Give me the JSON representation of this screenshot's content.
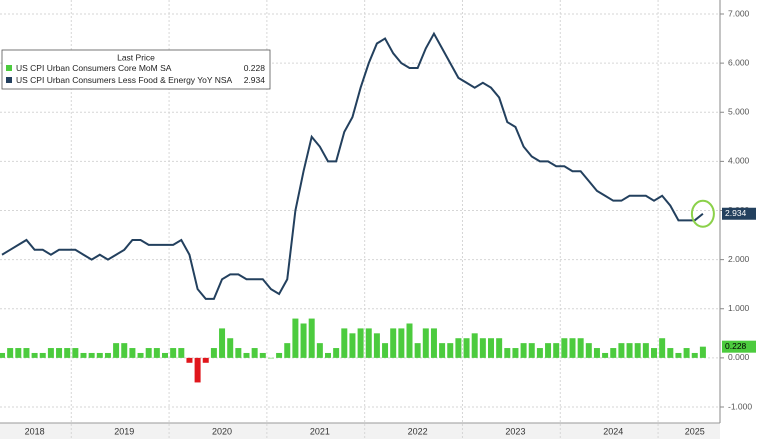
{
  "chart_data": {
    "type": "bar_line",
    "categories": [
      null,
      null,
      null,
      null,
      "2018",
      null,
      null,
      null,
      null,
      null,
      null,
      null,
      null,
      null,
      null,
      "2019",
      null,
      null,
      null,
      null,
      null,
      null,
      null,
      null,
      null,
      null,
      null,
      "2020",
      null,
      null,
      null,
      null,
      null,
      null,
      null,
      null,
      null,
      null,
      null,
      "2021",
      null,
      null,
      null,
      null,
      null,
      null,
      null,
      null,
      null,
      null,
      null,
      "2022",
      null,
      null,
      null,
      null,
      null,
      null,
      null,
      null,
      null,
      null,
      null,
      "2023",
      null,
      null,
      null,
      null,
      null,
      null,
      null,
      null,
      null,
      null,
      null,
      "2024",
      null,
      null,
      null,
      null,
      null,
      null,
      null,
      null,
      null,
      "2025",
      null
    ],
    "series": [
      {
        "name": "US CPI Urban Consumers Core MoM SA",
        "type": "bar",
        "color": "#4ccb3e",
        "negative_color": "#e0161c",
        "last_label": "0.228",
        "values": [
          0.1,
          0.2,
          0.2,
          0.2,
          0.1,
          0.1,
          0.2,
          0.2,
          0.2,
          0.2,
          0.1,
          0.1,
          0.1,
          0.1,
          0.3,
          0.3,
          0.2,
          0.1,
          0.2,
          0.2,
          0.1,
          0.2,
          0.2,
          -0.1,
          -0.5,
          -0.1,
          0.2,
          0.6,
          0.4,
          0.2,
          0.1,
          0.2,
          0.1,
          0.0,
          0.1,
          0.3,
          0.8,
          0.7,
          0.8,
          0.3,
          0.1,
          0.2,
          0.6,
          0.5,
          0.6,
          0.6,
          0.5,
          0.3,
          0.6,
          0.6,
          0.7,
          0.3,
          0.6,
          0.6,
          0.3,
          0.3,
          0.4,
          0.4,
          0.5,
          0.4,
          0.4,
          0.4,
          0.2,
          0.2,
          0.3,
          0.3,
          0.2,
          0.3,
          0.3,
          0.4,
          0.4,
          0.4,
          0.3,
          0.2,
          0.1,
          0.2,
          0.3,
          0.3,
          0.3,
          0.3,
          0.2,
          0.4,
          0.2,
          0.1,
          0.2,
          0.1,
          0.228
        ]
      },
      {
        "name": "US CPI Urban Consumers Less Food & Energy YoY NSA",
        "type": "line",
        "color": "#23405e",
        "last_label": "2.934",
        "values": [
          2.1,
          2.2,
          2.3,
          2.4,
          2.2,
          2.2,
          2.1,
          2.2,
          2.2,
          2.2,
          2.1,
          2.0,
          2.1,
          2.0,
          2.1,
          2.2,
          2.4,
          2.4,
          2.3,
          2.3,
          2.3,
          2.3,
          2.4,
          2.1,
          1.4,
          1.2,
          1.2,
          1.6,
          1.7,
          1.7,
          1.6,
          1.6,
          1.6,
          1.4,
          1.3,
          1.6,
          3.0,
          3.8,
          4.5,
          4.3,
          4.0,
          4.0,
          4.6,
          4.9,
          5.5,
          6.0,
          6.4,
          6.5,
          6.2,
          6.0,
          5.9,
          5.9,
          6.3,
          6.6,
          6.3,
          6.0,
          5.7,
          5.6,
          5.5,
          5.6,
          5.5,
          5.3,
          4.8,
          4.7,
          4.3,
          4.1,
          4.0,
          4.0,
          3.9,
          3.9,
          3.8,
          3.8,
          3.6,
          3.4,
          3.3,
          3.2,
          3.2,
          3.3,
          3.3,
          3.3,
          3.2,
          3.3,
          3.1,
          2.8,
          2.8,
          2.8,
          2.934
        ]
      }
    ],
    "legend": {
      "title": "Last Price",
      "corner": "top-left"
    },
    "ylim": [
      -1,
      7
    ],
    "yticks": [
      {
        "value": -1,
        "label": "-1.000"
      },
      {
        "value": 0,
        "label": "0.000"
      },
      {
        "value": 1,
        "label": "1.000"
      },
      {
        "value": 2,
        "label": "2.000"
      },
      {
        "value": 3,
        "label": "3.000"
      },
      {
        "value": 4,
        "label": "4.000"
      },
      {
        "value": 5,
        "label": "5.000"
      },
      {
        "value": 6,
        "label": "6.000"
      },
      {
        "value": 7,
        "label": "7.000"
      }
    ],
    "grid": true
  }
}
